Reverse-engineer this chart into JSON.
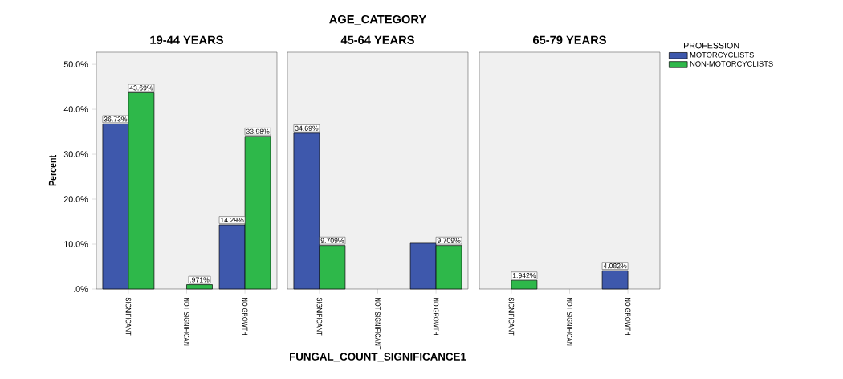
{
  "chart_data": [
    {
      "type": "bar",
      "title": "19-44 YEARS",
      "categories": [
        "SIGNIFICANT",
        "NOT SIGNIFICANT",
        "NO GROWTH"
      ],
      "ylabel": "Percent",
      "ylim": [
        0,
        52.7
      ],
      "yticks": [
        {
          "value": 0,
          "label": ".0%"
        },
        {
          "value": 10,
          "label": "10.0%"
        },
        {
          "value": 20,
          "label": "20.0%"
        },
        {
          "value": 30,
          "label": "30.0%"
        },
        {
          "value": 40,
          "label": "40.0%"
        },
        {
          "value": 50,
          "label": "50.0%"
        }
      ],
      "series": [
        {
          "color": "#3e58ac",
          "values": [
            36.73,
            null,
            14.29
          ],
          "value_labels": [
            "36.73%",
            null,
            "14.29%"
          ]
        },
        {
          "color": "#2eb84a",
          "values": [
            43.69,
            0.971,
            33.98
          ],
          "value_labels": [
            "43.69%",
            ".971%",
            "33.98%"
          ]
        }
      ]
    },
    {
      "type": "bar",
      "title": "45-64 YEARS",
      "categories": [
        "SIGNIFICANT",
        "NOT SIGNIFICANT",
        "NO GROWTH"
      ],
      "xlabel": "FUNGAL_COUNT_SIGNIFICANCE1",
      "annotations": [
        "AGE_CATEGORY"
      ],
      "tick_labels": "x",
      "ylim": [
        0,
        52.7
      ],
      "yticks": [
        {
          "value": 0,
          "label": null
        },
        {
          "value": 10,
          "label": null
        },
        {
          "value": 20,
          "label": null
        },
        {
          "value": 30,
          "label": null
        },
        {
          "value": 40,
          "label": null
        },
        {
          "value": 50,
          "label": null
        }
      ],
      "series": [
        {
          "color": "#3e58ac",
          "values": [
            34.69,
            null,
            10.2
          ],
          "value_labels": [
            "34.69%",
            null,
            null
          ]
        },
        {
          "color": "#2eb84a",
          "values": [
            9.709,
            null,
            9.709
          ],
          "value_labels": [
            "9.709%",
            null,
            "9.709%"
          ]
        }
      ]
    },
    {
      "type": "bar",
      "title": "65-79 YEARS",
      "categories": [
        "SIGNIFICANT",
        "NOT SIGNIFICANT",
        "NO GROWTH"
      ],
      "tick_labels": "x",
      "legend_title": "PROFESSION",
      "legend": "top right",
      "ylim": [
        0,
        52.7
      ],
      "yticks": [
        {
          "value": 0,
          "label": null
        },
        {
          "value": 10,
          "label": null
        },
        {
          "value": 20,
          "label": null
        },
        {
          "value": 30,
          "label": null
        },
        {
          "value": 40,
          "label": null
        },
        {
          "value": 50,
          "label": null
        }
      ],
      "series": [
        {
          "name": "MOTORCYCLISTS",
          "color": "#3e58ac",
          "values": [
            null,
            null,
            4.082
          ],
          "value_labels": [
            null,
            null,
            "4.082%"
          ]
        },
        {
          "name": "NON-MOTORCYCLISTS",
          "color": "#2eb84a",
          "values": [
            1.942,
            null,
            null
          ],
          "value_labels": [
            "1.942%",
            null,
            null
          ]
        }
      ]
    }
  ]
}
